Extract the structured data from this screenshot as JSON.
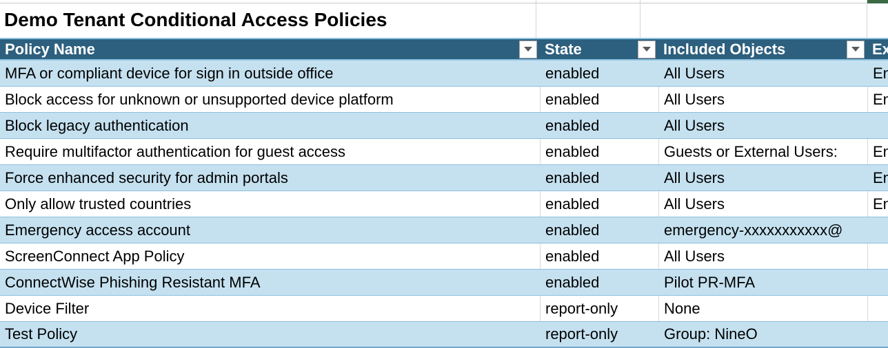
{
  "app": {
    "title": "Demo Tenant Conditional Access Policies"
  },
  "colors": {
    "header_bg": "#2D5F7E",
    "header_text": "#FFFFFF",
    "band_blue": "#C5E1F0",
    "band_white": "#FFFFFF",
    "row_separator": "#8CBEDC",
    "gridline_gray": "#D4D4D4",
    "green_cell": "#3A6B45",
    "filter_arrow": "#595959"
  },
  "table": {
    "columns": [
      {
        "label": "Policy Name",
        "filter": true
      },
      {
        "label": "State",
        "filter": true
      },
      {
        "label": "Included Objects",
        "filter": true
      },
      {
        "label": "Ex",
        "filter": false
      }
    ],
    "rows": [
      {
        "policy_name": "MFA or compliant device for sign in outside office",
        "state": "enabled",
        "included": "All Users",
        "excluded": "En",
        "band": "blue"
      },
      {
        "policy_name": "Block access for unknown or unsupported device platform",
        "state": "enabled",
        "included": "All Users",
        "excluded": "En",
        "band": "white"
      },
      {
        "policy_name": "Block legacy authentication",
        "state": "enabled",
        "included": "All Users",
        "excluded": "",
        "band": "blue"
      },
      {
        "policy_name": "Require multifactor authentication for guest access",
        "state": "enabled",
        "included": "Guests or External Users:",
        "excluded": "En",
        "band": "white"
      },
      {
        "policy_name": "Force enhanced security for admin portals",
        "state": "enabled",
        "included": "All Users",
        "excluded": "En",
        "band": "blue"
      },
      {
        "policy_name": "Only allow trusted countries",
        "state": "enabled",
        "included": "All Users",
        "excluded": "En",
        "band": "white"
      },
      {
        "policy_name": "Emergency access account",
        "state": "enabled",
        "included": "emergency-xxxxxxxxxxx@",
        "excluded": "",
        "band": "blue",
        "included_overflow": true
      },
      {
        "policy_name": "ScreenConnect App Policy",
        "state": "enabled",
        "included": "All Users",
        "excluded": "",
        "band": "white"
      },
      {
        "policy_name": "ConnectWise Phishing Resistant MFA",
        "state": "enabled",
        "included": "Pilot PR-MFA",
        "excluded": "",
        "band": "blue"
      },
      {
        "policy_name": "Device Filter",
        "state": "report-only",
        "included": "None",
        "excluded": "",
        "band": "white"
      },
      {
        "policy_name": "Test Policy",
        "state": "report-only",
        "included": "Group: NineO",
        "excluded": "",
        "band": "blue"
      }
    ]
  }
}
